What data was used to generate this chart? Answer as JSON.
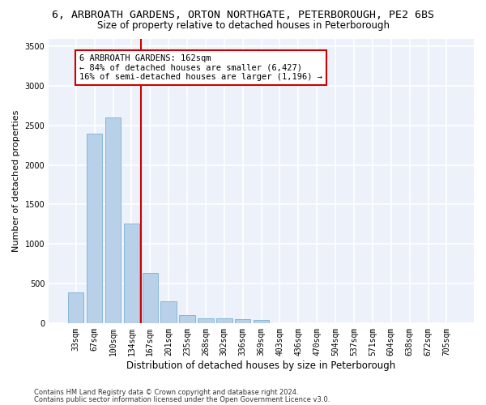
{
  "title_line1": "6, ARBROATH GARDENS, ORTON NORTHGATE, PETERBOROUGH, PE2 6BS",
  "title_line2": "Size of property relative to detached houses in Peterborough",
  "xlabel": "Distribution of detached houses by size in Peterborough",
  "ylabel": "Number of detached properties",
  "categories": [
    "33sqm",
    "67sqm",
    "100sqm",
    "134sqm",
    "167sqm",
    "201sqm",
    "235sqm",
    "268sqm",
    "302sqm",
    "336sqm",
    "369sqm",
    "403sqm",
    "436sqm",
    "470sqm",
    "504sqm",
    "537sqm",
    "571sqm",
    "604sqm",
    "638sqm",
    "672sqm",
    "705sqm"
  ],
  "values": [
    390,
    2400,
    2600,
    1260,
    630,
    280,
    100,
    60,
    55,
    50,
    35,
    0,
    0,
    0,
    0,
    0,
    0,
    0,
    0,
    0,
    0
  ],
  "bar_color": "#b8d0e8",
  "bar_edge_color": "#7aafd4",
  "vline_color": "#cc0000",
  "annotation_line1": "6 ARBROATH GARDENS: 162sqm",
  "annotation_line2": "← 84% of detached houses are smaller (6,427)",
  "annotation_line3": "16% of semi-detached houses are larger (1,196) →",
  "annotation_box_color": "#cc0000",
  "ylim": [
    0,
    3600
  ],
  "yticks": [
    0,
    500,
    1000,
    1500,
    2000,
    2500,
    3000,
    3500
  ],
  "background_color": "#edf2fa",
  "grid_color": "#ffffff",
  "footer_line1": "Contains HM Land Registry data © Crown copyright and database right 2024.",
  "footer_line2": "Contains public sector information licensed under the Open Government Licence v3.0.",
  "title_fontsize": 9.5,
  "subtitle_fontsize": 8.5,
  "axis_label_fontsize": 8,
  "tick_fontsize": 7,
  "annotation_fontsize": 7.5,
  "footer_fontsize": 6
}
